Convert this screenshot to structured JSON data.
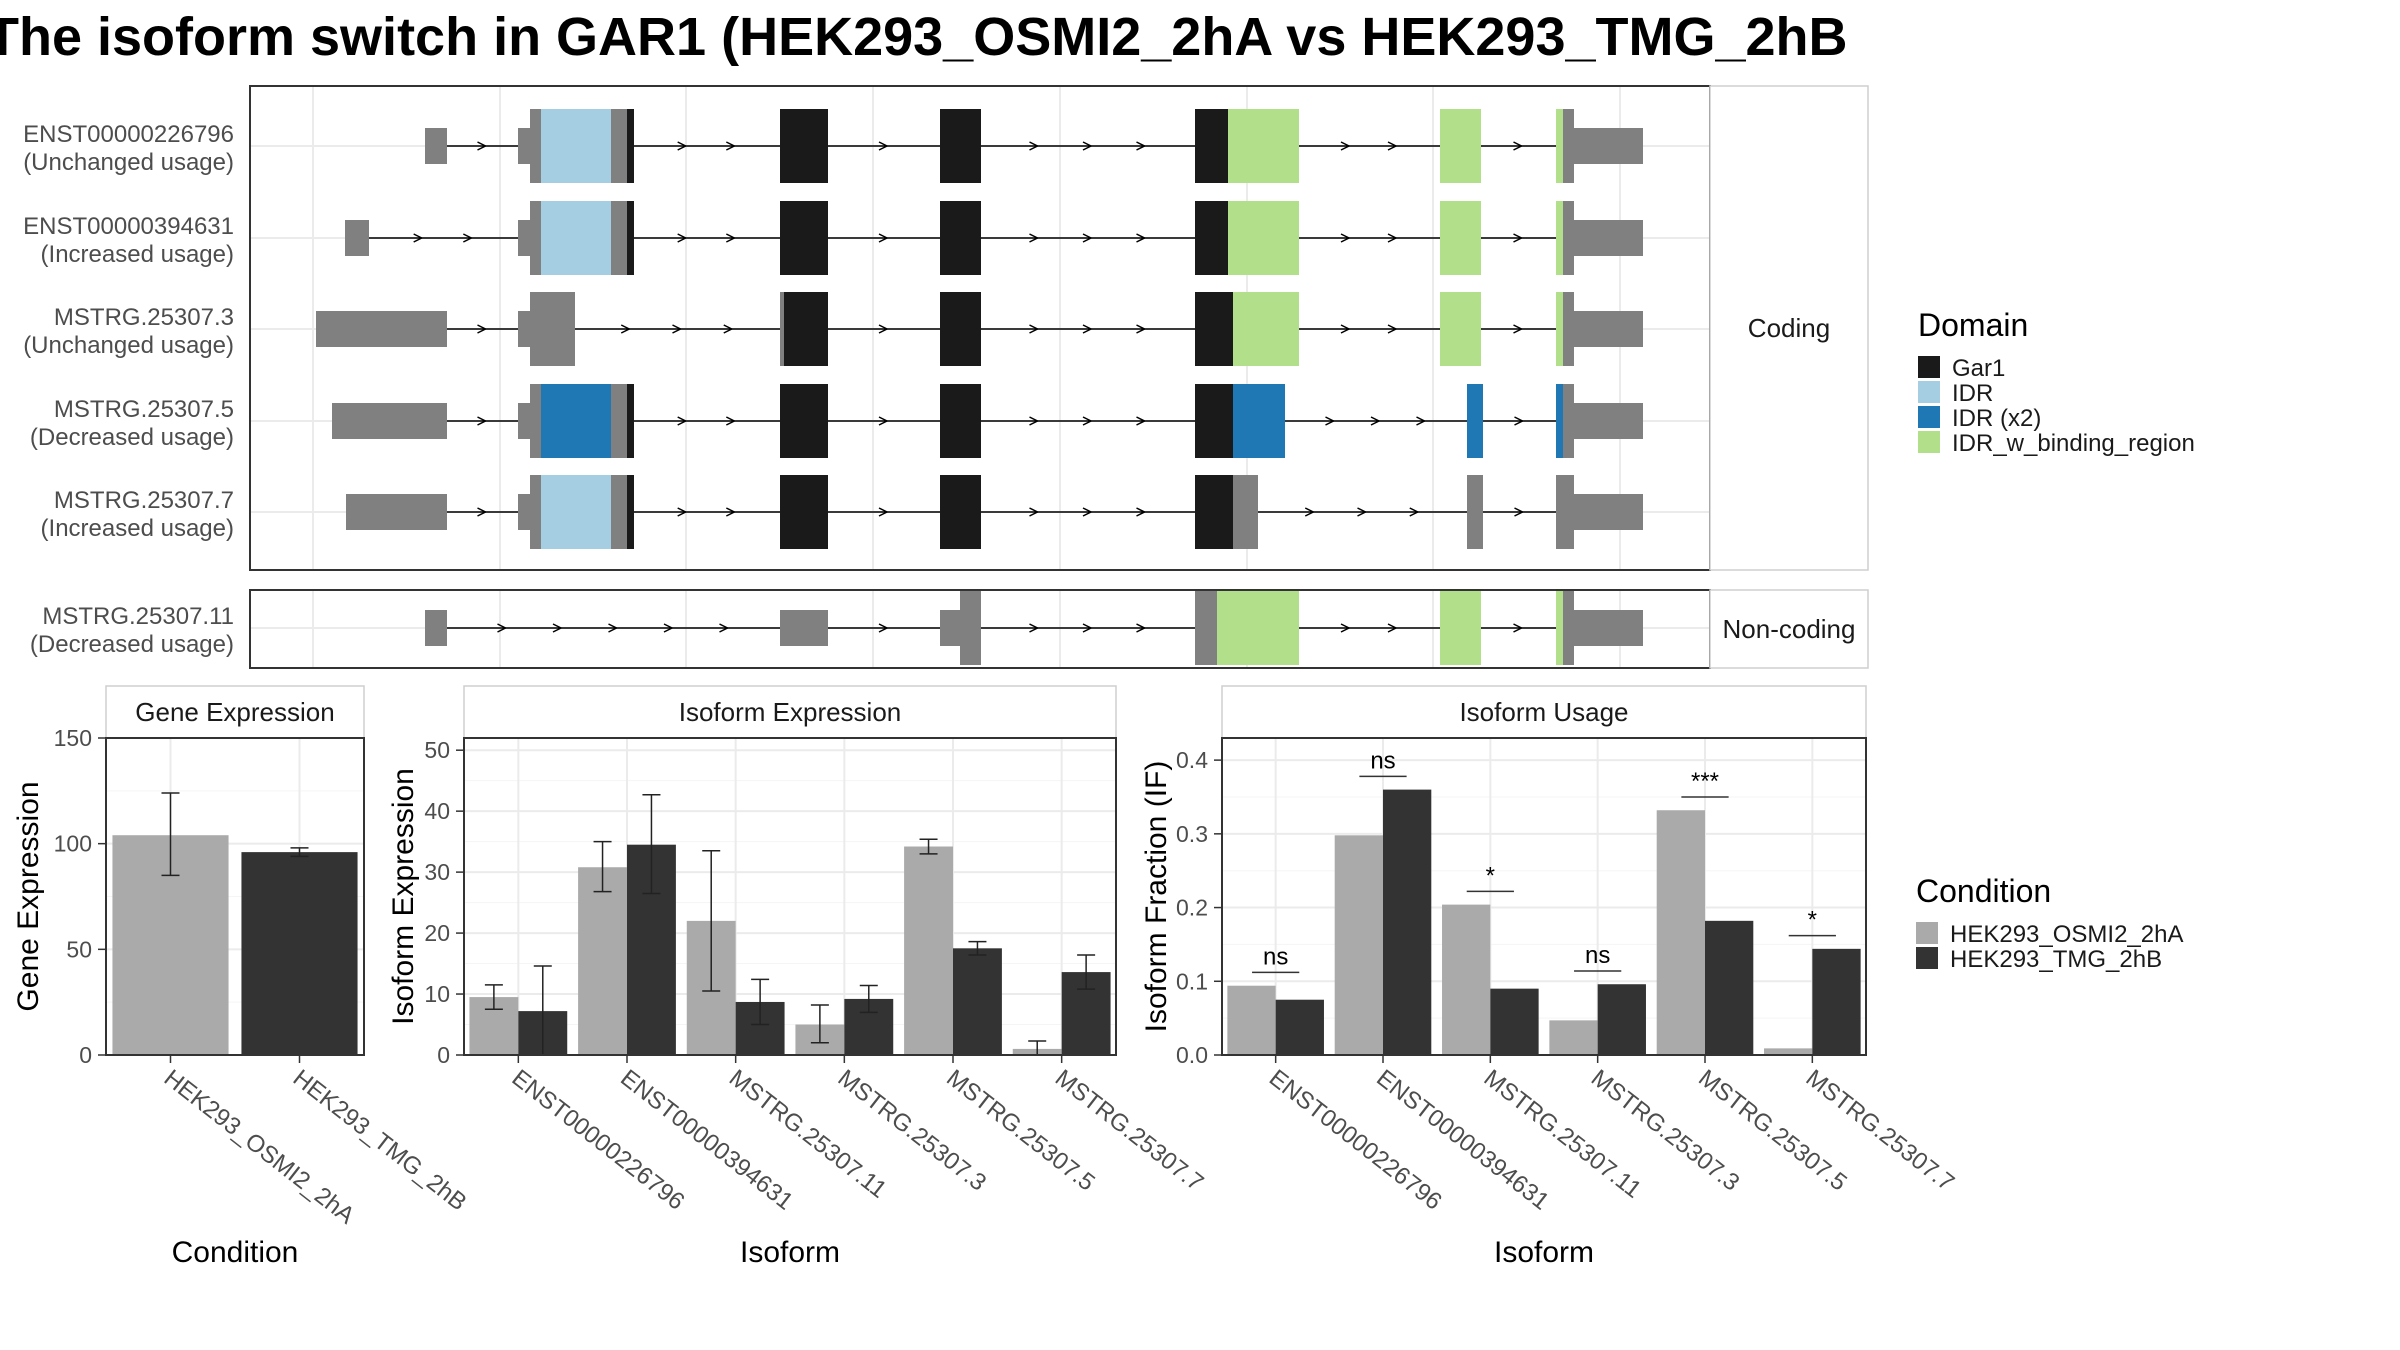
{
  "title": "The isoform switch in GAR1 (HEK293_OSMI2_2hA vs HEK293_TMG_2hB",
  "colors": {
    "Gar1": "#1a1a1a",
    "IDR": "#a6cee3",
    "IDR (x2)": "#1f78b4",
    "IDR_w_binding_region": "#b2df8a",
    "utr": "#808080",
    "cond1": "#aaaaaa",
    "cond2": "#333333"
  },
  "domain_legend": {
    "title": "Domain",
    "items": [
      "Gar1",
      "IDR",
      "IDR (x2)",
      "IDR_w_binding_region"
    ]
  },
  "condition_legend": {
    "title": "Condition",
    "items": [
      "HEK293_OSMI2_2hA",
      "HEK293_TMG_2hB"
    ]
  },
  "structure": {
    "panels": [
      {
        "label": "Coding",
        "isoforms": [
          {
            "id": "ENST00000226796",
            "usage": "(Unchanged usage)"
          },
          {
            "id": "ENST00000394631",
            "usage": "(Increased usage)"
          },
          {
            "id": "MSTRG.25307.3",
            "usage": "(Unchanged usage)"
          },
          {
            "id": "MSTRG.25307.5",
            "usage": "(Decreased usage)"
          },
          {
            "id": "MSTRG.25307.7",
            "usage": "(Increased usage)"
          }
        ]
      },
      {
        "label": "Non-coding",
        "isoforms": [
          {
            "id": "MSTRG.25307.11",
            "usage": "(Decreased usage)"
          }
        ]
      }
    ]
  },
  "chart_data": [
    {
      "type": "bar",
      "title": "Gene Expression",
      "xlabel": "Condition",
      "ylabel": "Gene Expression",
      "ylim": [
        0,
        150
      ],
      "yticks": [
        0,
        50,
        100,
        150
      ],
      "grid": true,
      "categories": [
        "HEK293_OSMI2_2hA",
        "HEK293_TMG_2hB"
      ],
      "values": [
        104,
        96
      ],
      "errors": [
        [
          85,
          124
        ],
        [
          94,
          98
        ]
      ]
    },
    {
      "type": "bar",
      "title": "Isoform Expression",
      "xlabel": "Isoform",
      "ylabel": "Isoform Expression",
      "ylim": [
        0,
        52
      ],
      "yticks": [
        0,
        10,
        20,
        30,
        40,
        50
      ],
      "grid": true,
      "categories": [
        "ENST00000226796",
        "ENST00000394631",
        "MSTRG.25307.11",
        "MSTRG.25307.3",
        "MSTRG.25307.5",
        "MSTRG.25307.7"
      ],
      "series": [
        {
          "name": "HEK293_OSMI2_2hA",
          "values": [
            9.5,
            30.8,
            22,
            5,
            34.2,
            1
          ],
          "errors": [
            [
              7.5,
              11.5
            ],
            [
              26.8,
              35
            ],
            [
              10.5,
              33.5
            ],
            [
              2,
              8.2
            ],
            [
              33,
              35.4
            ],
            [
              0,
              2.3
            ]
          ]
        },
        {
          "name": "HEK293_TMG_2hB",
          "values": [
            7.2,
            34.5,
            8.7,
            9.2,
            17.5,
            13.6
          ],
          "errors": [
            [
              0,
              14.6
            ],
            [
              26.5,
              42.7
            ],
            [
              5,
              12.4
            ],
            [
              7,
              11.4
            ],
            [
              16.4,
              18.6
            ],
            [
              10.8,
              16.4
            ]
          ]
        }
      ]
    },
    {
      "type": "bar",
      "title": "Isoform Usage",
      "xlabel": "Isoform",
      "ylabel": "Isoform Fraction (IF)",
      "ylim": [
        0,
        0.43
      ],
      "yticks": [
        0.0,
        0.1,
        0.2,
        0.3,
        0.4
      ],
      "ytick_labels": [
        "0.0",
        "0.1",
        "0.2",
        "0.3",
        "0.4"
      ],
      "grid": true,
      "categories": [
        "ENST00000226796",
        "ENST00000394631",
        "MSTRG.25307.11",
        "MSTRG.25307.3",
        "MSTRG.25307.5",
        "MSTRG.25307.7"
      ],
      "series": [
        {
          "name": "HEK293_OSMI2_2hA",
          "values": [
            0.094,
            0.298,
            0.204,
            0.047,
            0.332,
            0.009
          ]
        },
        {
          "name": "HEK293_TMG_2hB",
          "values": [
            0.075,
            0.36,
            0.09,
            0.096,
            0.182,
            0.144
          ]
        }
      ],
      "significance": [
        "ns",
        "ns",
        "*",
        "ns",
        "***",
        "*"
      ],
      "significance_y": [
        0.112,
        0.378,
        0.222,
        0.114,
        0.35,
        0.162
      ]
    }
  ]
}
